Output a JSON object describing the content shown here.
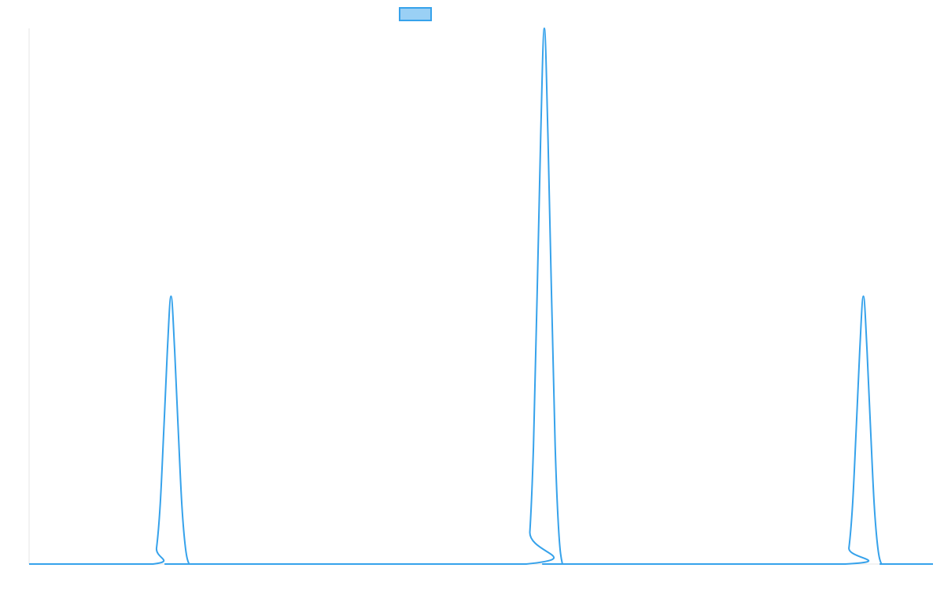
{
  "chart_data": {
    "type": "line",
    "title": "",
    "xlabel": "",
    "ylabel": "",
    "grid": false,
    "legend": {
      "position": "top-center",
      "entries": [
        {
          "label": "",
          "color": "#36a2eb"
        }
      ]
    },
    "xlim": [
      0,
      1000
    ],
    "ylim": [
      0,
      1
    ],
    "series": [
      {
        "color": "#36a2eb",
        "fill": "rgba(54,162,235,0.5)",
        "x": [
          0,
          137,
          141,
          145,
          149,
          153,
          157,
          161,
          165,
          169,
          173,
          177,
          181,
          550,
          554,
          558,
          562,
          566,
          570,
          574,
          578,
          582,
          586,
          590,
          594,
          903,
          907,
          911,
          915,
          919,
          923,
          927,
          931,
          935,
          939,
          943,
          947,
          1000
        ],
        "y": [
          0,
          0,
          0.03,
          0.11,
          0.25,
          0.4,
          0.5,
          0.4,
          0.25,
          0.11,
          0.03,
          0,
          0,
          0,
          0.06,
          0.22,
          0.5,
          0.8,
          1.0,
          0.8,
          0.5,
          0.22,
          0.06,
          0,
          0,
          0,
          0.03,
          0.11,
          0.25,
          0.4,
          0.5,
          0.4,
          0.25,
          0.11,
          0.03,
          0,
          0,
          0
        ]
      }
    ]
  }
}
